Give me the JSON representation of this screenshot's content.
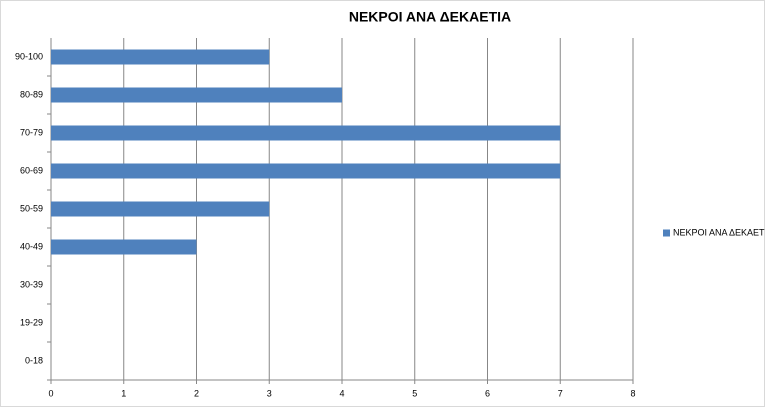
{
  "chart_data": {
    "type": "bar",
    "orientation": "horizontal",
    "title": "ΝΕΚΡΟΙ ΑΝΑ ΔΕΚΑΕΤΙΑ",
    "categories": [
      "0-18",
      "19-29",
      "30-39",
      "40-49",
      "50-59",
      "60-69",
      "70-79",
      "80-89",
      "90-100"
    ],
    "series": [
      {
        "name": "ΝΕΚΡΟΙ ΑΝΑ ΔΕΚΑΕΤΙΑ",
        "color": "#4f81bd",
        "values": [
          0,
          0,
          0,
          2,
          3,
          7,
          7,
          4,
          3
        ]
      }
    ],
    "xlim": [
      0,
      8
    ],
    "xticks": [
      0,
      1,
      2,
      3,
      4,
      5,
      6,
      7,
      8
    ],
    "grid": true,
    "legend": "right"
  }
}
